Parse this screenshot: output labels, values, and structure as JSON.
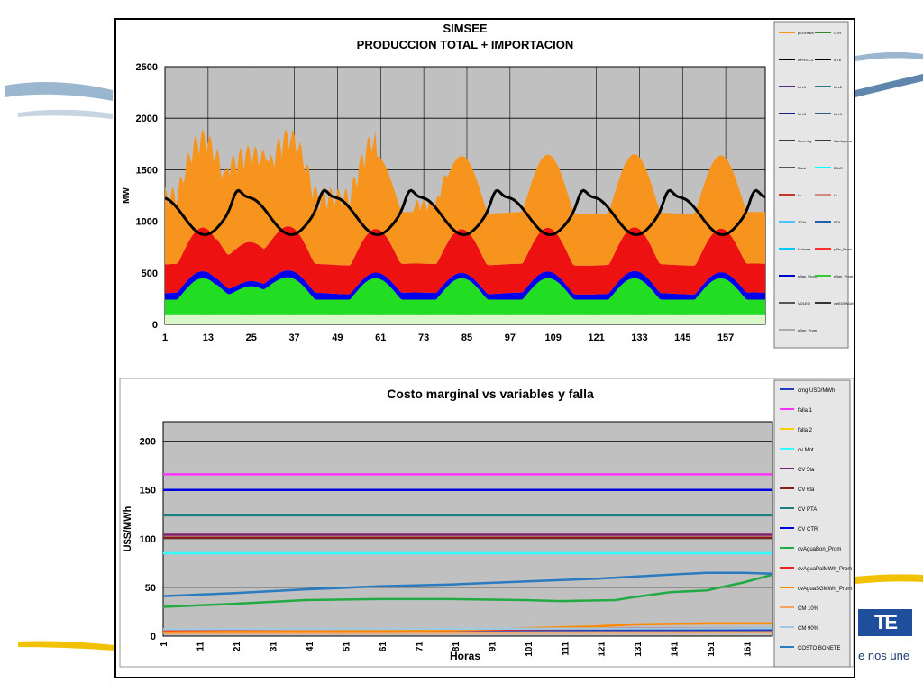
{
  "brand": {
    "tagline": "e nos une",
    "logo_text": "TE"
  },
  "chart_data": [
    {
      "type": "area",
      "title": "SIMSEE",
      "subtitle": "PRODUCCION TOTAL + IMPORTACION",
      "ylabel": "MW",
      "xlabel": "",
      "ylim": [
        0,
        2500
      ],
      "yticks": [
        0,
        500,
        1000,
        1500,
        2000,
        2500
      ],
      "xlim": [
        1,
        168
      ],
      "xticks": [
        1,
        13,
        25,
        37,
        49,
        61,
        73,
        85,
        97,
        109,
        121,
        133,
        145,
        157
      ],
      "grid": true,
      "legend_position": "right",
      "legend": [
        "pEGHram",
        "CTR",
        "APRS-L3",
        "MT6",
        "bfnr1",
        "bfnr2",
        "bfnr3",
        "bfnr1",
        "Cent. Ag",
        "Cardogena",
        "Barsl",
        "BfinS",
        "Vr",
        "Vr",
        "TGAi",
        "PTA",
        "Motores",
        "pPtc_Prom",
        "pBay_Prom",
        "pBon_Prom",
        "VOLEO",
        "cleEGPNUM",
        "pBon_Prom"
      ],
      "legend_colors": [
        "#f7941d",
        "#2e8b2e",
        "#000000",
        "#000000",
        "#5a2d82",
        "#2e7b7b",
        "#1a1a8a",
        "#2e5f8a",
        "#3a3a3a",
        "#3a3a3a",
        "#555555",
        "#00ffff",
        "#c0392b",
        "#d98880",
        "#4fc3f7",
        "#1f5fb4",
        "#00ccff",
        "#ff3030",
        "#0000cc",
        "#33cc33",
        "#555555",
        "#333333",
        "#aaaaaa"
      ],
      "series": [
        {
          "name": "pBon_Prom",
          "color": "#d9f7c9",
          "kind": "base"
        },
        {
          "name": "pBay_Prom",
          "color": "#22dd22",
          "kind": "area"
        },
        {
          "name": "pPtc_Prom",
          "color": "#0000ee",
          "kind": "area"
        },
        {
          "name": "Motores",
          "color": "#ee1111",
          "kind": "area"
        },
        {
          "name": "pEGHram",
          "color": "#f7941d",
          "kind": "area"
        },
        {
          "name": "Demanda",
          "color": "#000000",
          "kind": "line"
        }
      ]
    },
    {
      "type": "line",
      "title": "Costo marginal  vs variables y falla",
      "xlabel": "Horas",
      "ylabel": "U$S/MWh",
      "ylim": [
        0,
        220
      ],
      "yticks": [
        0,
        50,
        100,
        150,
        200
      ],
      "xlim": [
        1,
        168
      ],
      "xticks": [
        1,
        11,
        21,
        31,
        41,
        51,
        61,
        71,
        81,
        91,
        101,
        111,
        121,
        131,
        141,
        151,
        161
      ],
      "grid": true,
      "legend_position": "right",
      "series": [
        {
          "name": "cmg USD/MWh",
          "color": "#1f3fbf",
          "values_desc": "flat",
          "value": 6
        },
        {
          "name": "falla 1",
          "color": "#ff33ff",
          "value": 166
        },
        {
          "name": "falla 2",
          "color": "#ffcc00",
          "value": 104
        },
        {
          "name": "cv Mot",
          "color": "#33ffff",
          "value": 85
        },
        {
          "name": "CV 5ta",
          "color": "#7a1f7a",
          "value": 104
        },
        {
          "name": "CV 6ta",
          "color": "#8b1a1a",
          "value": 101
        },
        {
          "name": "CV PTA",
          "color": "#1a8080",
          "value": 124
        },
        {
          "name": "CV CTR",
          "color": "#0000dd",
          "value": 150
        },
        {
          "name": "cvAguaBon_Prom",
          "color": "#22aa44",
          "points": [
            [
              1,
              30
            ],
            [
              20,
              33
            ],
            [
              40,
              37
            ],
            [
              60,
              38
            ],
            [
              80,
              38
            ],
            [
              100,
              37
            ],
            [
              110,
              36
            ],
            [
              125,
              37
            ],
            [
              130,
              40
            ],
            [
              140,
              45
            ],
            [
              150,
              47
            ],
            [
              160,
              55
            ],
            [
              168,
              63
            ]
          ]
        },
        {
          "name": "cvAguaPalMWh_Prom",
          "color": "#ee2222",
          "points": [
            [
              1,
              5
            ],
            [
              80,
              6
            ],
            [
              100,
              7
            ],
            [
              130,
              8
            ],
            [
              168,
              8
            ]
          ]
        },
        {
          "name": "cvAguaSGMWh_Prom",
          "color": "#ff8800",
          "points": [
            [
              1,
              4
            ],
            [
              80,
              6
            ],
            [
              100,
              8
            ],
            [
              120,
              10
            ],
            [
              130,
              12
            ],
            [
              150,
              13
            ],
            [
              168,
              13
            ]
          ]
        },
        {
          "name": "CM 10%",
          "color": "#f4a460",
          "points": [
            [
              1,
              3
            ],
            [
              168,
              4
            ]
          ]
        },
        {
          "name": "CM 90%",
          "color": "#a0c8e0",
          "points": [
            [
              1,
              7
            ],
            [
              168,
              8
            ]
          ]
        },
        {
          "name": "COSTO BONETE",
          "color": "#2a7bc0",
          "points": [
            [
              1,
              41
            ],
            [
              20,
              44
            ],
            [
              40,
              48
            ],
            [
              60,
              51
            ],
            [
              80,
              53
            ],
            [
              100,
              56
            ],
            [
              120,
              59
            ],
            [
              140,
              63
            ],
            [
              150,
              65
            ],
            [
              160,
              65
            ],
            [
              168,
              64
            ]
          ]
        }
      ]
    }
  ]
}
